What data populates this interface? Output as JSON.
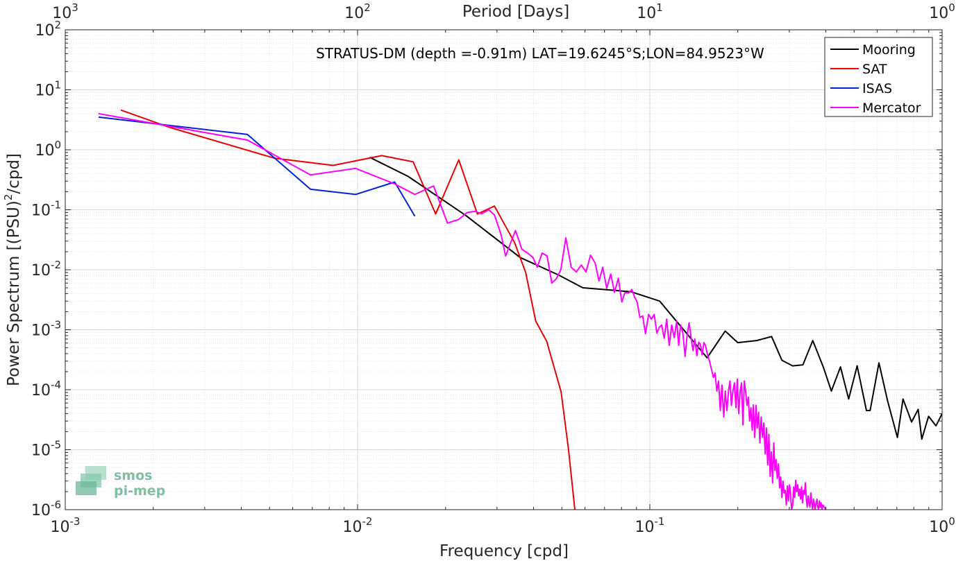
{
  "chart_data": {
    "type": "line",
    "title": "STRATUS-DM (depth =-0.91m) LAT=19.6245°S;LON=84.9523°W",
    "xlabel": "Frequency [cpd]",
    "ylabel_main": "Power Spectrum [(PSU)",
    "ylabel_sup": "2",
    "ylabel_tail": "/cpd]",
    "x2label": "Period [Days]",
    "xscale": "log",
    "yscale": "log",
    "xlim": [
      0.001,
      1
    ],
    "ylim": [
      1e-06,
      100
    ],
    "grid": true,
    "legend_position": "top-right",
    "x_ticks": [
      {
        "base": "10",
        "exp": "-3"
      },
      {
        "base": "10",
        "exp": "-2"
      },
      {
        "base": "10",
        "exp": "-1"
      },
      {
        "base": "10",
        "exp": "0"
      }
    ],
    "x2_ticks": [
      {
        "base": "10",
        "exp": "3"
      },
      {
        "base": "10",
        "exp": "2"
      },
      {
        "base": "10",
        "exp": "1"
      },
      {
        "base": "10",
        "exp": "0"
      }
    ],
    "y_ticks": [
      {
        "base": "10",
        "exp": "-6"
      },
      {
        "base": "10",
        "exp": "-5"
      },
      {
        "base": "10",
        "exp": "-4"
      },
      {
        "base": "10",
        "exp": "-3"
      },
      {
        "base": "10",
        "exp": "-2"
      },
      {
        "base": "10",
        "exp": "-1"
      },
      {
        "base": "10",
        "exp": "0"
      },
      {
        "base": "10",
        "exp": "1"
      },
      {
        "base": "10",
        "exp": "2"
      }
    ],
    "series": [
      {
        "name": "Mooring",
        "color": "#000000",
        "points": [
          [
            0.011,
            0.75
          ],
          [
            0.0149,
            0.36
          ],
          [
            0.0235,
            0.08
          ],
          [
            0.036,
            0.016
          ],
          [
            0.0487,
            0.0082
          ],
          [
            0.059,
            0.005
          ],
          [
            0.0862,
            0.0043
          ],
          [
            0.108,
            0.003
          ],
          [
            0.157,
            0.00034
          ],
          [
            0.181,
            0.00095
          ],
          [
            0.2,
            0.00061
          ],
          [
            0.232,
            0.00066
          ],
          [
            0.261,
            0.00077
          ],
          [
            0.283,
            0.00031
          ],
          [
            0.308,
            0.00025
          ],
          [
            0.334,
            0.00026
          ],
          [
            0.361,
            0.00066
          ],
          [
            0.392,
            0.00024
          ],
          [
            0.418,
            9.5e-05
          ],
          [
            0.449,
            0.00024
          ],
          [
            0.479,
            7e-05
          ],
          [
            0.512,
            0.00025
          ],
          [
            0.551,
            4.5e-05
          ],
          [
            0.567,
            4.5e-05
          ],
          [
            0.608,
            0.00028
          ],
          [
            0.651,
            6.5e-05
          ],
          [
            0.703,
            1.6e-05
          ],
          [
            0.735,
            7e-05
          ],
          [
            0.786,
            2.9e-05
          ],
          [
            0.828,
            4.7e-05
          ],
          [
            0.852,
            1.5e-05
          ],
          [
            0.899,
            3.6e-05
          ],
          [
            0.953,
            2.5e-05
          ],
          [
            1.0,
            4e-05
          ]
        ]
      },
      {
        "name": "SAT",
        "color": "#ee0000",
        "points": [
          [
            0.00155,
            4.6
          ],
          [
            0.00225,
            2.4
          ],
          [
            0.00522,
            0.72
          ],
          [
            0.00825,
            0.55
          ],
          [
            0.0121,
            0.8
          ],
          [
            0.0155,
            0.63
          ],
          [
            0.0185,
            0.085
          ],
          [
            0.0222,
            0.68
          ],
          [
            0.0257,
            0.085
          ],
          [
            0.0294,
            0.115
          ],
          [
            0.0345,
            0.028
          ],
          [
            0.0376,
            0.009
          ],
          [
            0.0407,
            0.0014
          ],
          [
            0.0444,
            0.00064
          ],
          [
            0.0497,
            9.2e-05
          ],
          [
            0.0527,
            1e-05
          ],
          [
            0.0554,
            1e-06
          ]
        ]
      },
      {
        "name": "ISAS",
        "color": "#0022dd",
        "points": [
          [
            0.0013,
            3.5
          ],
          [
            0.0042,
            1.8
          ],
          [
            0.0069,
            0.22
          ],
          [
            0.00985,
            0.18
          ],
          [
            0.0134,
            0.29
          ],
          [
            0.0157,
            0.078
          ]
        ]
      },
      {
        "name": "Mercator",
        "color": "#ff00ff",
        "points": [
          [
            0.0013,
            4.0
          ],
          [
            0.0042,
            1.45
          ],
          [
            0.0069,
            0.38
          ],
          [
            0.00985,
            0.49
          ],
          [
            0.0134,
            0.27
          ],
          [
            0.0157,
            0.18
          ],
          [
            0.0182,
            0.25
          ],
          [
            0.0203,
            0.06
          ],
          [
            0.0222,
            0.069
          ],
          [
            0.0237,
            0.09
          ],
          [
            0.0252,
            0.094
          ],
          [
            0.0266,
            0.086
          ],
          [
            0.0281,
            0.1
          ],
          [
            0.0294,
            0.082
          ],
          [
            0.031,
            0.038
          ],
          [
            0.0321,
            0.017
          ],
          [
            0.0333,
            0.027
          ],
          [
            0.0347,
            0.045
          ],
          [
            0.0365,
            0.022
          ],
          [
            0.0382,
            0.019
          ],
          [
            0.0398,
            0.016
          ],
          [
            0.0412,
            0.011
          ],
          [
            0.0428,
            0.019
          ],
          [
            0.0445,
            0.017
          ],
          [
            0.0462,
            0.006
          ],
          [
            0.0478,
            0.007
          ],
          [
            0.0496,
            0.01
          ],
          [
            0.0516,
            0.034
          ],
          [
            0.0538,
            0.011
          ],
          [
            0.056,
            0.0092
          ],
          [
            0.0583,
            0.012
          ],
          [
            0.0605,
            0.0092
          ],
          [
            0.0627,
            0.0175
          ],
          [
            0.065,
            0.013
          ],
          [
            0.067,
            0.0065
          ],
          [
            0.069,
            0.011
          ],
          [
            0.0712,
            0.0049
          ],
          [
            0.0735,
            0.0085
          ],
          [
            0.0757,
            0.0042
          ],
          [
            0.078,
            0.0072
          ],
          [
            0.0802,
            0.0029
          ],
          [
            0.0822,
            0.0042
          ],
          [
            0.0845,
            0.0041
          ],
          [
            0.0868,
            0.0047
          ],
          [
            0.0885,
            0.0036
          ],
          [
            0.0905,
            0.0029
          ],
          [
            0.0925,
            0.0016
          ],
          [
            0.0945,
            0.0017
          ],
          [
            0.0966,
            0.00086
          ],
          [
            0.099,
            0.0018
          ],
          [
            0.1012,
            0.0015
          ],
          [
            0.1035,
            0.0018
          ],
          [
            0.1057,
            0.00088
          ],
          [
            0.1078,
            0.0011
          ],
          [
            0.1098,
            0.0012
          ],
          [
            0.112,
            0.00072
          ],
          [
            0.1142,
            0.0015
          ],
          [
            0.1165,
            0.00055
          ],
          [
            0.1188,
            0.0012
          ],
          [
            0.1212,
            0.00074
          ],
          [
            0.1236,
            0.0014
          ],
          [
            0.1255,
            0.00055
          ],
          [
            0.1275,
            0.0012
          ],
          [
            0.1297,
            0.0009
          ],
          [
            0.132,
            0.00036
          ],
          [
            0.134,
            0.00077
          ],
          [
            0.1362,
            0.0013
          ],
          [
            0.1385,
            0.00072
          ],
          [
            0.1405,
            0.00045
          ],
          [
            0.1425,
            0.0007
          ],
          [
            0.1448,
            0.00037
          ],
          [
            0.147,
            0.00062
          ],
          [
            0.149,
            0.00057
          ],
          [
            0.151,
            0.00038
          ],
          [
            0.153,
            0.00061
          ],
          [
            0.155,
            0.00055
          ],
          [
            0.1575,
            0.00038
          ],
          [
            0.16,
            0.0003
          ],
          [
            0.1625,
            0.00022
          ],
          [
            0.165,
            0.00016
          ],
          [
            0.1672,
            0.00019
          ],
          [
            0.1695,
            9.5e-05
          ],
          [
            0.1718,
            0.00014
          ],
          [
            0.1742,
            4.5e-05
          ],
          [
            0.1765,
            0.00012
          ],
          [
            0.179,
            3.5e-05
          ],
          [
            0.1812,
            9.5e-05
          ],
          [
            0.1835,
            4.5e-05
          ],
          [
            0.1858,
            9.5e-05
          ],
          [
            0.188,
            0.00014
          ],
          [
            0.1902,
            5.5e-05
          ],
          [
            0.1925,
            9.5e-05
          ],
          [
            0.1948,
            0.00013
          ],
          [
            0.197,
            5e-05
          ],
          [
            0.1992,
            0.00015
          ],
          [
            0.2015,
            4e-05
          ],
          [
            0.2037,
            9.5e-05
          ],
          [
            0.206,
            0.00013
          ],
          [
            0.2082,
            2.6e-05
          ],
          [
            0.2105,
            0.00014
          ],
          [
            0.2128,
            9e-05
          ],
          [
            0.215,
            5.5e-05
          ],
          [
            0.2172,
            7.5e-05
          ],
          [
            0.2195,
            3e-05
          ],
          [
            0.2218,
            5e-05
          ],
          [
            0.224,
            2.1e-05
          ],
          [
            0.2262,
            5.6e-05
          ],
          [
            0.2285,
            1.6e-05
          ],
          [
            0.2308,
            5.5e-05
          ],
          [
            0.233,
            2.3e-05
          ],
          [
            0.2355,
            4.2e-05
          ],
          [
            0.238,
            1.3e-05
          ],
          [
            0.2405,
            3.5e-05
          ],
          [
            0.243,
            1.6e-05
          ],
          [
            0.2455,
            2.8e-05
          ],
          [
            0.248,
            8.5e-06
          ],
          [
            0.2505,
            2.3e-05
          ],
          [
            0.253,
            5.6e-06
          ],
          [
            0.2555,
            1.8e-05
          ],
          [
            0.258,
            3.6e-06
          ],
          [
            0.2605,
            9.2e-06
          ],
          [
            0.263,
            2.8e-06
          ],
          [
            0.2655,
            1.3e-05
          ],
          [
            0.268,
            4.5e-06
          ],
          [
            0.2705,
            6.8e-06
          ],
          [
            0.273,
            3.3e-06
          ],
          [
            0.2755,
            5.8e-06
          ],
          [
            0.278,
            2.3e-06
          ],
          [
            0.2805,
            3.5e-06
          ],
          [
            0.283,
            1.6e-06
          ],
          [
            0.2855,
            3e-06
          ],
          [
            0.288,
            1.9e-06
          ],
          [
            0.2905,
            2.1e-06
          ],
          [
            0.293,
            1.2e-06
          ],
          [
            0.2955,
            2.5e-06
          ],
          [
            0.298,
            1.4e-06
          ],
          [
            0.3005,
            2.6e-06
          ],
          [
            0.303,
            1.8e-06
          ],
          [
            0.3055,
            1e-06
          ],
          [
            0.308,
            1.2e-06
          ],
          [
            0.3105,
            2.4e-06
          ],
          [
            0.313,
            1.6e-06
          ],
          [
            0.3155,
            3.1e-06
          ],
          [
            0.318,
            2e-06
          ],
          [
            0.3205,
            2.6e-06
          ],
          [
            0.323,
            1.7e-06
          ],
          [
            0.3255,
            2.2e-06
          ],
          [
            0.328,
            1.5e-06
          ],
          [
            0.3305,
            2.4e-06
          ],
          [
            0.333,
            1.3e-06
          ],
          [
            0.3355,
            2.1e-06
          ],
          [
            0.338,
            1.8e-06
          ],
          [
            0.3405,
            2.8e-06
          ],
          [
            0.343,
            1.5e-06
          ],
          [
            0.3455,
            1.1e-06
          ],
          [
            0.348,
            1.7e-06
          ],
          [
            0.3505,
            1.3e-06
          ],
          [
            0.353,
            1.1e-06
          ],
          [
            0.3555,
            1.9e-06
          ],
          [
            0.358,
            1.3e-06
          ],
          [
            0.3605,
            1e-06
          ],
          [
            0.363,
            1.5e-06
          ],
          [
            0.3655,
            1.2e-06
          ],
          [
            0.368,
            1e-06
          ],
          [
            0.3705,
            1.3e-06
          ],
          [
            0.373,
            1.5e-06
          ],
          [
            0.3755,
            1.1e-06
          ],
          [
            0.378,
            1e-06
          ],
          [
            0.3805,
            1.4e-06
          ],
          [
            0.383,
            1.1e-06
          ],
          [
            0.3855,
            1.3e-06
          ],
          [
            0.388,
            1e-06
          ],
          [
            0.3905,
            1.2e-06
          ],
          [
            0.3955,
            1.1e-06
          ],
          [
            0.4,
            1e-06
          ]
        ]
      }
    ]
  },
  "logo": {
    "line1": "smos",
    "line2": "pi-mep"
  }
}
